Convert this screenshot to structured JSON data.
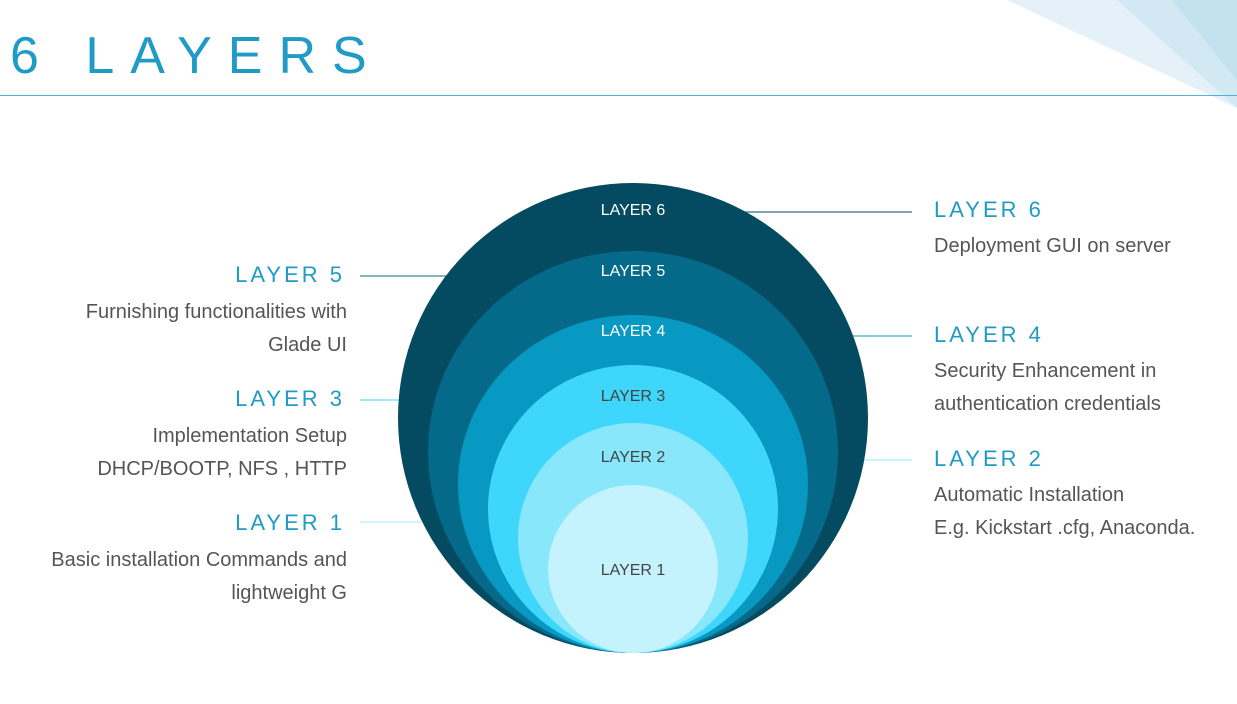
{
  "title": "6 LAYERS",
  "colors": {
    "accent": "#1f9bc6",
    "layer6": "#044a60",
    "layer5": "#05698a",
    "layer4": "#0899c2",
    "layer3": "#3ed6fb",
    "layer2": "#88e7fb",
    "layer1": "#c4f3fd",
    "desc_text": "#555555"
  },
  "rings": [
    {
      "label": "LAYER 6"
    },
    {
      "label": "LAYER 5"
    },
    {
      "label": "LAYER 4"
    },
    {
      "label": "LAYER 3"
    },
    {
      "label": "LAYER 2"
    },
    {
      "label": "LAYER 1"
    }
  ],
  "callouts": {
    "layer6": {
      "heading": "LAYER 6",
      "lines": [
        "Deployment GUI on server"
      ]
    },
    "layer5": {
      "heading": "LAYER 5",
      "lines": [
        "Furnishing functionalities with",
        "Glade UI"
      ]
    },
    "layer4": {
      "heading": "LAYER 4",
      "lines": [
        "Security Enhancement in",
        "authentication credentials"
      ]
    },
    "layer3": {
      "heading": "LAYER 3",
      "lines": [
        "Implementation Setup",
        "DHCP/BOOTP, NFS ,  HTTP"
      ]
    },
    "layer2": {
      "heading": "LAYER 2",
      "lines": [
        "Automatic Installation",
        "E.g. Kickstart .cfg, Anaconda."
      ]
    },
    "layer1": {
      "heading": "LAYER 1",
      "lines": [
        "Basic installation Commands and",
        "lightweight G"
      ]
    }
  }
}
